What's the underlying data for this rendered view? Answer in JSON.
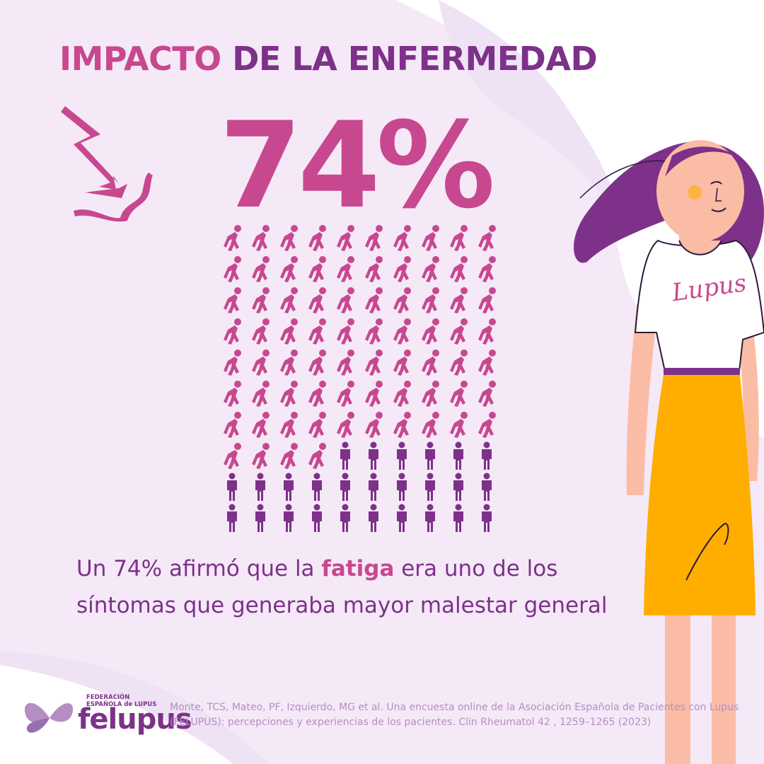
{
  "title": {
    "part1": "IMPACTO",
    "part2": "DE LA ENFERMEDAD"
  },
  "stat": {
    "value": "74%",
    "highlighted_count": 74,
    "total_count": 100
  },
  "caption": {
    "before": "Un 74% afirmó que la ",
    "highlight": "fatiga",
    "after": " era uno de los síntomas que generaba mayor malestar general"
  },
  "logo": {
    "line1": "FEDERACIÓN",
    "line2": "ESPAÑOLA de LUPUS",
    "name": "felupus"
  },
  "citation": "Monte, TCS, Mateo, PF, Izquierdo, MG et al. Una encuesta online de la Asociación Española de Pacientes con Lupus (FELUPUS): percepciones y experiencias de los pacientes. Clin Rheumatol 42 , 1259–1265 (2023)",
  "shirt_text": "Lupus",
  "colors": {
    "background": "#f5e9f8",
    "blob": "#ffffff",
    "pink": "#c8488f",
    "purple": "#7d3189",
    "skirt": "#ffae00",
    "skin": "#fbbca5",
    "hair": "#7d3189"
  },
  "icons": {
    "fatigued_person": "tired-person-icon",
    "standing_person": "standing-person-icon",
    "impact": "lightning-impact-icon"
  }
}
